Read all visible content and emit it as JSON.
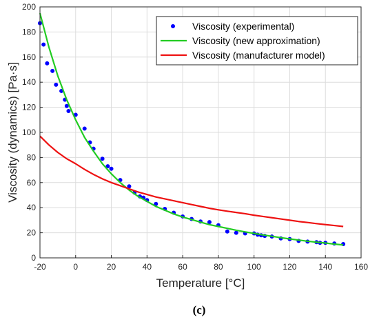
{
  "caption": "(c)",
  "chart_data": {
    "type": "line",
    "xlabel": "Temperature [°C]",
    "ylabel": "Viscosity (dynamics) [Pa·s]",
    "xlim": [
      -20,
      160
    ],
    "ylim": [
      0,
      200
    ],
    "xticks": [
      -20,
      0,
      20,
      40,
      60,
      80,
      100,
      120,
      140,
      160
    ],
    "yticks": [
      0,
      20,
      40,
      60,
      80,
      100,
      120,
      140,
      160,
      180,
      200
    ],
    "grid": true,
    "legend_position": "top-right",
    "series": [
      {
        "name": "Viscosity (experimental)",
        "kind": "scatter",
        "color": "#0000ff",
        "x": [
          -20,
          -18,
          -16,
          -13,
          -11,
          -8,
          -6,
          -5,
          -4,
          0,
          5,
          8,
          10,
          15,
          18,
          20,
          25,
          30,
          33,
          36,
          38,
          40,
          45,
          50,
          55,
          60,
          65,
          70,
          75,
          80,
          85,
          90,
          95,
          100,
          102,
          104,
          106,
          110,
          115,
          120,
          125,
          130,
          135,
          137,
          140,
          145,
          150
        ],
        "y": [
          187,
          170,
          155,
          149,
          138,
          133,
          126,
          121,
          117,
          114,
          103,
          92,
          87,
          79,
          73,
          71,
          62,
          57,
          52,
          49,
          48,
          46,
          43,
          39,
          36,
          33,
          31,
          29,
          28.5,
          26,
          21,
          20,
          19.5,
          19.5,
          18.5,
          18,
          17.5,
          17,
          15.5,
          15,
          13.5,
          13,
          12.5,
          12,
          12,
          11.5,
          11
        ]
      },
      {
        "name": "Viscosity (new approximation)",
        "kind": "line",
        "color": "#22cc22",
        "x": [
          -20,
          -15,
          -10,
          -5,
          0,
          5,
          10,
          15,
          20,
          25,
          30,
          35,
          40,
          45,
          50,
          55,
          60,
          65,
          70,
          75,
          80,
          85,
          90,
          95,
          100,
          105,
          110,
          115,
          120,
          125,
          130,
          135,
          140,
          145,
          150
        ],
        "y": [
          195,
          168,
          145,
          126,
          110,
          96,
          85,
          75,
          67,
          60,
          54,
          49,
          45,
          41,
          38,
          35,
          32.5,
          30.5,
          28.5,
          26.5,
          25,
          23.5,
          22,
          20.7,
          19.5,
          18.3,
          17.2,
          16.1,
          15.1,
          14.2,
          13.3,
          12.5,
          11.8,
          11,
          10.3
        ]
      },
      {
        "name": "Viscosity (manufacturer model)",
        "kind": "line",
        "color": "#ee1111",
        "x": [
          -20,
          -15,
          -10,
          -5,
          0,
          5,
          10,
          15,
          20,
          25,
          30,
          35,
          40,
          45,
          50,
          55,
          60,
          65,
          70,
          75,
          80,
          85,
          90,
          95,
          100,
          105,
          110,
          115,
          120,
          125,
          130,
          135,
          140,
          145,
          150
        ],
        "y": [
          97,
          90,
          84,
          79,
          75,
          70.5,
          66.5,
          63,
          60,
          57.5,
          55,
          52.5,
          50.5,
          48.5,
          47,
          45.5,
          44,
          42.5,
          41,
          39.5,
          38.3,
          37.2,
          36.2,
          35.2,
          34,
          33,
          32,
          31,
          30,
          29,
          28.2,
          27.3,
          26.5,
          25.8,
          25
        ]
      }
    ]
  }
}
